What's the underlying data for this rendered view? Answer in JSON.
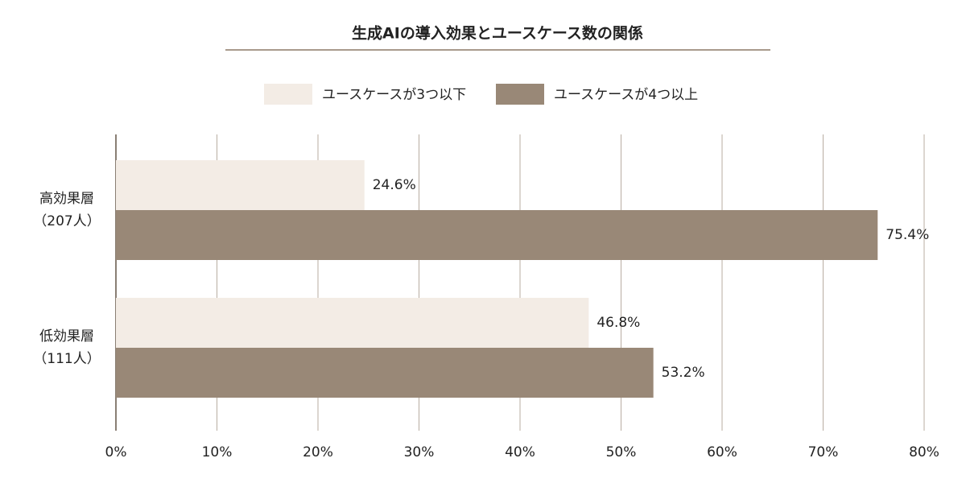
{
  "chart_data": {
    "type": "bar",
    "orientation": "horizontal",
    "title": "生成AIの導入効果とユースケース数の関係",
    "categories": [
      "高効果層\n（207人）",
      "低効果層\n（111人）"
    ],
    "series": [
      {
        "name": "ユースケースが3つ以下",
        "color": "#f3ece5",
        "values": [
          24.6,
          46.8
        ],
        "value_labels": [
          "24.6%",
          "46.8%"
        ]
      },
      {
        "name": "ユースケースが4つ以上",
        "color": "#998877",
        "values": [
          75.4,
          53.2
        ],
        "value_labels": [
          "75.4%",
          "53.2%"
        ]
      }
    ],
    "xlim": [
      0,
      80
    ],
    "xticks": [
      {
        "value": 0,
        "label": "0%"
      },
      {
        "value": 10,
        "label": "10%"
      },
      {
        "value": 20,
        "label": "20%"
      },
      {
        "value": 30,
        "label": "30%"
      },
      {
        "value": 40,
        "label": "40%"
      },
      {
        "value": 50,
        "label": "50%"
      },
      {
        "value": 60,
        "label": "60%"
      },
      {
        "value": 70,
        "label": "70%"
      },
      {
        "value": 80,
        "label": "80%"
      }
    ],
    "grid": true,
    "legend": "top"
  }
}
